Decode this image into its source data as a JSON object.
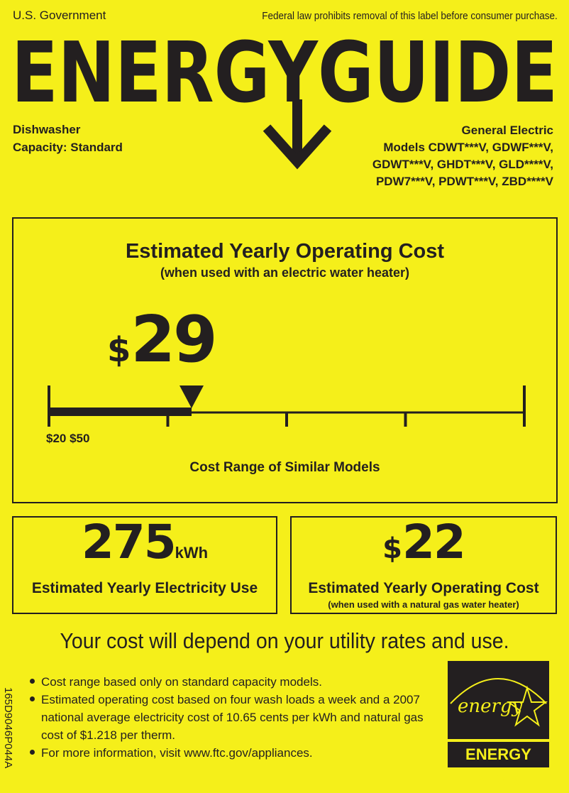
{
  "header": {
    "government": "U.S. Government",
    "notice": "Federal law prohibits removal of this label before consumer purchase.",
    "logo_text": "ENERGYGUIDE"
  },
  "appliance": {
    "type": "Dishwasher",
    "capacity": "Capacity: Standard"
  },
  "manufacturer": {
    "name": "General Electric",
    "models": [
      "Models  CDWT***V, GDWF***V,",
      "GDWT***V, GHDT***V, GLD****V,",
      "PDW7***V, PDWT***V, ZBD****V"
    ]
  },
  "main_cost": {
    "title": "Estimated Yearly Operating Cost",
    "subtitle": "(when used with an electric water heater)",
    "currency": "$",
    "value": "29",
    "range_min": 20,
    "range_max": 50,
    "range_label": "$20 $50",
    "range_caption": "Cost Range of Similar Models"
  },
  "electricity": {
    "value": "275",
    "unit": "kWh",
    "label": "Estimated Yearly Electricity Use"
  },
  "gas_cost": {
    "currency": "$",
    "value": "22",
    "label": "Estimated Yearly Operating Cost",
    "sublabel": "(when used with a natural gas water heater)"
  },
  "disclaimer": "Your cost will depend on your utility rates and use.",
  "notes": [
    "Cost range based only on standard capacity models.",
    "Estimated operating cost based on four wash loads a week and a 2007 national average electricity cost of 10.65 cents per kWh and natural gas cost of $1.218 per therm.",
    "For more information, visit www.ftc.gov/appliances."
  ],
  "label_code": "165D9046P044A",
  "energy_star": {
    "script": "energy",
    "text": "ENERGY STAR"
  },
  "colors": {
    "background": "#f5ef1a",
    "ink": "#231f20"
  }
}
